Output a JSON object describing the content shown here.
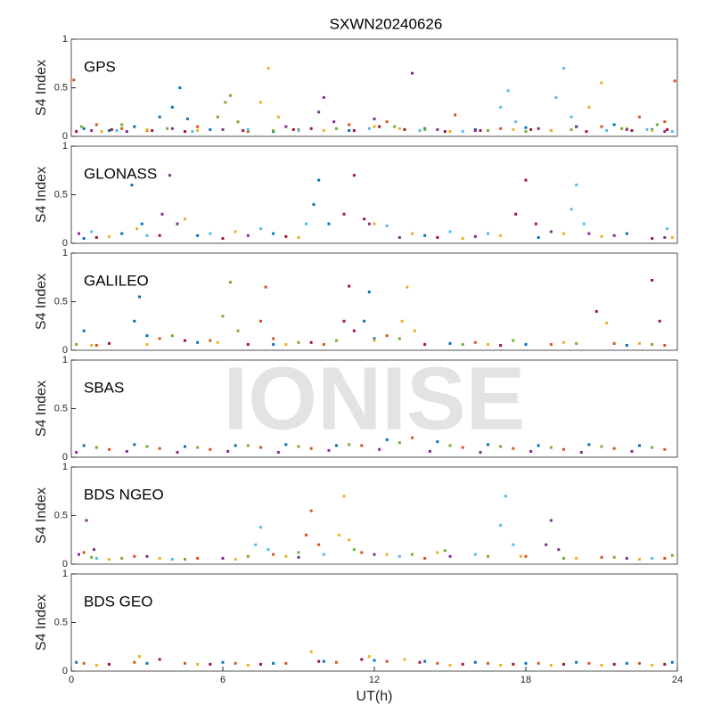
{
  "figure": {
    "title": "SXWN20240626",
    "xlabel": "UT(h)",
    "watermark": "IONISE"
  },
  "chart_data": [
    {
      "type": "scatter",
      "label": "GPS",
      "ylabel": "S4 Index",
      "xlim": [
        0,
        24
      ],
      "ylim": [
        0,
        1
      ],
      "yticks": [
        0,
        0.5,
        1
      ],
      "series": [
        {
          "color": "#0072bd",
          "x": [
            0.5,
            1.5,
            2.5,
            3.5,
            4.0,
            4.3,
            4.6,
            5.5,
            8,
            11,
            14,
            16,
            18,
            20,
            21.5,
            23
          ],
          "values": [
            0.08,
            0.06,
            0.1,
            0.2,
            0.3,
            0.5,
            0.18,
            0.07,
            0.05,
            0.06,
            0.08,
            0.07,
            0.09,
            0.1,
            0.12,
            0.07
          ]
        },
        {
          "color": "#d95319",
          "x": [
            0.1,
            1,
            2,
            3,
            5,
            7,
            9,
            11,
            12.5,
            15.2,
            17,
            19,
            21,
            22.5,
            23.5,
            23.9
          ],
          "values": [
            0.58,
            0.12,
            0.08,
            0.06,
            0.1,
            0.05,
            0.07,
            0.12,
            0.15,
            0.22,
            0.08,
            0.06,
            0.1,
            0.2,
            0.15,
            0.57
          ]
        },
        {
          "color": "#edb120",
          "x": [
            1.2,
            3,
            5,
            7.5,
            7.8,
            8.2,
            10,
            12,
            13,
            15,
            17.5,
            19,
            20.5,
            21,
            22,
            23
          ],
          "values": [
            0.05,
            0.07,
            0.06,
            0.35,
            0.7,
            0.2,
            0.06,
            0.1,
            0.08,
            0.05,
            0.07,
            0.06,
            0.3,
            0.55,
            0.08,
            0.06
          ]
        },
        {
          "color": "#7e2f8e",
          "x": [
            0.8,
            2.2,
            4,
            6,
            8.5,
            9.8,
            10,
            10.4,
            12,
            13.5,
            14.5,
            16,
            18.5,
            20,
            22,
            23.5
          ],
          "values": [
            0.06,
            0.05,
            0.08,
            0.07,
            0.1,
            0.25,
            0.4,
            0.15,
            0.18,
            0.65,
            0.07,
            0.06,
            0.08,
            0.1,
            0.07,
            0.05
          ]
        },
        {
          "color": "#77ac30",
          "x": [
            0.4,
            2,
            3.8,
            5.8,
            6.1,
            6.3,
            6.6,
            8,
            10.5,
            12.8,
            14,
            16.5,
            18,
            19.8,
            21.8,
            23.2
          ],
          "values": [
            0.1,
            0.12,
            0.08,
            0.2,
            0.35,
            0.42,
            0.15,
            0.06,
            0.08,
            0.1,
            0.07,
            0.06,
            0.05,
            0.07,
            0.08,
            0.12
          ]
        },
        {
          "color": "#4dbeee",
          "x": [
            1.8,
            4.8,
            7,
            9,
            11.8,
            13.8,
            15.5,
            17,
            17.3,
            17.6,
            19.2,
            19.5,
            19.8,
            21.2,
            22.8,
            23.8
          ],
          "values": [
            0.06,
            0.05,
            0.07,
            0.06,
            0.08,
            0.06,
            0.05,
            0.3,
            0.47,
            0.15,
            0.4,
            0.7,
            0.2,
            0.06,
            0.07,
            0.05
          ]
        },
        {
          "color": "#a2142f",
          "x": [
            0.2,
            1.6,
            3.2,
            4.5,
            6.8,
            8.8,
            9.5,
            11.2,
            12.2,
            13.2,
            14.8,
            16.2,
            18.2,
            20.4,
            22.2,
            23.6
          ],
          "values": [
            0.05,
            0.07,
            0.06,
            0.05,
            0.06,
            0.07,
            0.08,
            0.06,
            0.1,
            0.07,
            0.05,
            0.06,
            0.07,
            0.05,
            0.06,
            0.07
          ]
        }
      ]
    },
    {
      "type": "scatter",
      "label": "GLONASS",
      "ylabel": "S4 Index",
      "xlim": [
        0,
        24
      ],
      "ylim": [
        0,
        1
      ],
      "yticks": [
        0,
        0.5,
        1
      ],
      "series": [
        {
          "color": "#0072bd",
          "x": [
            0.5,
            2,
            2.4,
            2.8,
            5,
            8,
            9.6,
            9.8,
            10.2,
            14,
            18.5,
            22
          ],
          "values": [
            0.05,
            0.1,
            0.6,
            0.2,
            0.08,
            0.1,
            0.4,
            0.65,
            0.2,
            0.08,
            0.06,
            0.1
          ]
        },
        {
          "color": "#a2142f",
          "x": [
            1,
            3.5,
            6,
            8.5,
            10.8,
            11.2,
            11.6,
            14.5,
            17.6,
            18,
            18.4,
            23
          ],
          "values": [
            0.06,
            0.08,
            0.05,
            0.07,
            0.3,
            0.7,
            0.25,
            0.06,
            0.3,
            0.65,
            0.2,
            0.05
          ]
        },
        {
          "color": "#7e2f8e",
          "x": [
            0.3,
            3.6,
            3.9,
            4.2,
            7,
            11.8,
            13,
            16,
            19,
            20.5,
            21.5,
            23.5
          ],
          "values": [
            0.1,
            0.3,
            0.7,
            0.2,
            0.08,
            0.2,
            0.06,
            0.07,
            0.12,
            0.1,
            0.08,
            0.06
          ]
        },
        {
          "color": "#edb120",
          "x": [
            1.5,
            2.6,
            4.5,
            6.5,
            9,
            12,
            13.5,
            15.5,
            17,
            19.5,
            21,
            23.8
          ],
          "values": [
            0.07,
            0.15,
            0.25,
            0.12,
            0.06,
            0.2,
            0.1,
            0.05,
            0.08,
            0.1,
            0.07,
            0.06
          ]
        },
        {
          "color": "#4dbeee",
          "x": [
            0.8,
            3,
            5.5,
            7.5,
            9.3,
            12.5,
            15,
            16.5,
            19.8,
            20,
            20.3,
            23.6
          ],
          "values": [
            0.12,
            0.08,
            0.1,
            0.15,
            0.2,
            0.18,
            0.12,
            0.1,
            0.35,
            0.6,
            0.2,
            0.15
          ]
        }
      ]
    },
    {
      "type": "scatter",
      "label": "GALILEO",
      "ylabel": "S4 Index",
      "xlim": [
        0,
        24
      ],
      "ylim": [
        0,
        1
      ],
      "yticks": [
        0,
        0.5,
        1
      ],
      "series": [
        {
          "color": "#0072bd",
          "x": [
            0.5,
            2.5,
            2.7,
            3,
            5,
            8,
            11.6,
            11.8,
            12,
            15,
            18,
            22
          ],
          "values": [
            0.2,
            0.3,
            0.55,
            0.15,
            0.08,
            0.06,
            0.3,
            0.6,
            0.12,
            0.07,
            0.06,
            0.05
          ]
        },
        {
          "color": "#d95319",
          "x": [
            1,
            3.5,
            5.5,
            7.5,
            7.7,
            8,
            10,
            12.5,
            16,
            19,
            21.5,
            23.5
          ],
          "values": [
            0.05,
            0.12,
            0.1,
            0.3,
            0.65,
            0.12,
            0.06,
            0.15,
            0.08,
            0.06,
            0.07,
            0.05
          ]
        },
        {
          "color": "#77ac30",
          "x": [
            0.2,
            4,
            6,
            6.3,
            6.6,
            9,
            10.5,
            13,
            15.5,
            17.5,
            20,
            23
          ],
          "values": [
            0.06,
            0.15,
            0.35,
            0.7,
            0.2,
            0.08,
            0.1,
            0.12,
            0.06,
            0.1,
            0.07,
            0.06
          ]
        },
        {
          "color": "#a2142f",
          "x": [
            1.5,
            4.5,
            7,
            9.5,
            10.8,
            11,
            11.2,
            14,
            17,
            20.8,
            23,
            23.3
          ],
          "values": [
            0.07,
            0.1,
            0.06,
            0.08,
            0.3,
            0.66,
            0.2,
            0.06,
            0.05,
            0.4,
            0.72,
            0.3
          ]
        },
        {
          "color": "#edb120",
          "x": [
            0.8,
            3,
            5.8,
            8.5,
            12,
            13.1,
            13.3,
            13.6,
            16.5,
            19.5,
            21.2,
            22.5
          ],
          "values": [
            0.05,
            0.06,
            0.08,
            0.06,
            0.1,
            0.3,
            0.65,
            0.2,
            0.06,
            0.08,
            0.28,
            0.07
          ]
        }
      ]
    },
    {
      "type": "scatter",
      "label": "SBAS",
      "ylabel": "S4 Index",
      "xlim": [
        0,
        24
      ],
      "ylim": [
        0,
        1
      ],
      "yticks": [
        0,
        0.5,
        1
      ],
      "series": [
        {
          "color": "#0072bd",
          "x": [
            0.5,
            2.5,
            4.5,
            6.5,
            8.5,
            10.5,
            12.5,
            14.5,
            16.5,
            18.5,
            20.5,
            22.5
          ],
          "values": [
            0.12,
            0.13,
            0.11,
            0.12,
            0.13,
            0.12,
            0.18,
            0.16,
            0.13,
            0.12,
            0.13,
            0.12
          ]
        },
        {
          "color": "#77ac30",
          "x": [
            1,
            3,
            5,
            7,
            9,
            11,
            13,
            15,
            17,
            19,
            21,
            23
          ],
          "values": [
            0.1,
            0.11,
            0.1,
            0.12,
            0.11,
            0.13,
            0.15,
            0.12,
            0.11,
            0.1,
            0.11,
            0.1
          ]
        },
        {
          "color": "#d95319",
          "x": [
            1.5,
            3.5,
            5.5,
            7.5,
            9.5,
            11.5,
            13.5,
            15.5,
            17.5,
            19.5,
            21.5,
            23.5
          ],
          "values": [
            0.08,
            0.09,
            0.08,
            0.1,
            0.09,
            0.12,
            0.2,
            0.1,
            0.09,
            0.08,
            0.09,
            0.08
          ]
        },
        {
          "color": "#7e2f8e",
          "x": [
            0.2,
            2.2,
            4.2,
            6.2,
            8.2,
            10.2,
            12.2,
            14.2,
            16.2,
            18.2,
            20.2,
            22.2
          ],
          "values": [
            0.05,
            0.06,
            0.05,
            0.06,
            0.05,
            0.07,
            0.08,
            0.06,
            0.05,
            0.06,
            0.05,
            0.06
          ]
        }
      ]
    },
    {
      "type": "scatter",
      "label": "BDS NGEO",
      "ylabel": "S4 Index",
      "xlim": [
        0,
        24
      ],
      "ylim": [
        0,
        1
      ],
      "yticks": [
        0,
        0.5,
        1
      ],
      "series": [
        {
          "color": "#7e2f8e",
          "x": [
            0.3,
            0.6,
            0.9,
            3,
            6,
            9,
            12,
            15,
            18.8,
            19,
            19.3,
            22
          ],
          "values": [
            0.1,
            0.45,
            0.15,
            0.08,
            0.06,
            0.07,
            0.1,
            0.08,
            0.2,
            0.45,
            0.15,
            0.06
          ]
        },
        {
          "color": "#4dbeee",
          "x": [
            1,
            4,
            7.3,
            7.5,
            7.8,
            10,
            13,
            16,
            17,
            17.2,
            17.5,
            23
          ],
          "values": [
            0.06,
            0.05,
            0.2,
            0.38,
            0.15,
            0.1,
            0.08,
            0.1,
            0.4,
            0.7,
            0.2,
            0.06
          ]
        },
        {
          "color": "#d95319",
          "x": [
            0.5,
            2.5,
            5,
            8,
            9.3,
            9.5,
            9.8,
            11.5,
            14,
            18,
            21,
            23.5
          ],
          "values": [
            0.12,
            0.08,
            0.06,
            0.1,
            0.3,
            0.55,
            0.2,
            0.12,
            0.06,
            0.08,
            0.07,
            0.06
          ]
        },
        {
          "color": "#edb120",
          "x": [
            1.5,
            3.5,
            6.5,
            8.5,
            10.6,
            10.8,
            11,
            12.5,
            14.5,
            17.8,
            20,
            22.5
          ],
          "values": [
            0.05,
            0.06,
            0.05,
            0.08,
            0.3,
            0.7,
            0.25,
            0.1,
            0.12,
            0.08,
            0.06,
            0.05
          ]
        },
        {
          "color": "#77ac30",
          "x": [
            0.8,
            2,
            4.5,
            7,
            9,
            11.2,
            13.5,
            14.8,
            16.5,
            19.5,
            21.5,
            23.8
          ],
          "values": [
            0.07,
            0.06,
            0.05,
            0.08,
            0.12,
            0.15,
            0.1,
            0.14,
            0.08,
            0.06,
            0.07,
            0.09
          ]
        }
      ]
    },
    {
      "type": "scatter",
      "label": "BDS GEO",
      "ylabel": "S4 Index",
      "xlim": [
        0,
        24
      ],
      "ylim": [
        0,
        1
      ],
      "yticks": [
        0,
        0.5,
        1
      ],
      "xticks": [
        0,
        6,
        12,
        18,
        24
      ],
      "series": [
        {
          "color": "#d95319",
          "x": [
            0.5,
            2.5,
            4.5,
            6.5,
            8.5,
            10.5,
            12.5,
            14.5,
            16.5,
            18.5,
            20.5,
            22.5
          ],
          "values": [
            0.08,
            0.09,
            0.08,
            0.08,
            0.08,
            0.09,
            0.1,
            0.08,
            0.08,
            0.08,
            0.08,
            0.08
          ]
        },
        {
          "color": "#edb120",
          "x": [
            1,
            2.7,
            5,
            7,
            9.5,
            11.8,
            13.2,
            15,
            17,
            19,
            21,
            23
          ],
          "values": [
            0.06,
            0.15,
            0.07,
            0.06,
            0.2,
            0.15,
            0.12,
            0.06,
            0.06,
            0.06,
            0.06,
            0.06
          ]
        },
        {
          "color": "#a2142f",
          "x": [
            1.5,
            3.5,
            5.5,
            7.5,
            9.8,
            11.5,
            13.8,
            15.5,
            17.5,
            19.5,
            21.5,
            23.5
          ],
          "values": [
            0.07,
            0.12,
            0.07,
            0.07,
            0.1,
            0.12,
            0.09,
            0.07,
            0.07,
            0.07,
            0.07,
            0.07
          ]
        },
        {
          "color": "#0072bd",
          "x": [
            0.2,
            3,
            6,
            8,
            10,
            12,
            14,
            16,
            18,
            20,
            22,
            23.8
          ],
          "values": [
            0.09,
            0.08,
            0.09,
            0.08,
            0.1,
            0.11,
            0.1,
            0.09,
            0.08,
            0.09,
            0.08,
            0.09
          ]
        }
      ]
    }
  ]
}
